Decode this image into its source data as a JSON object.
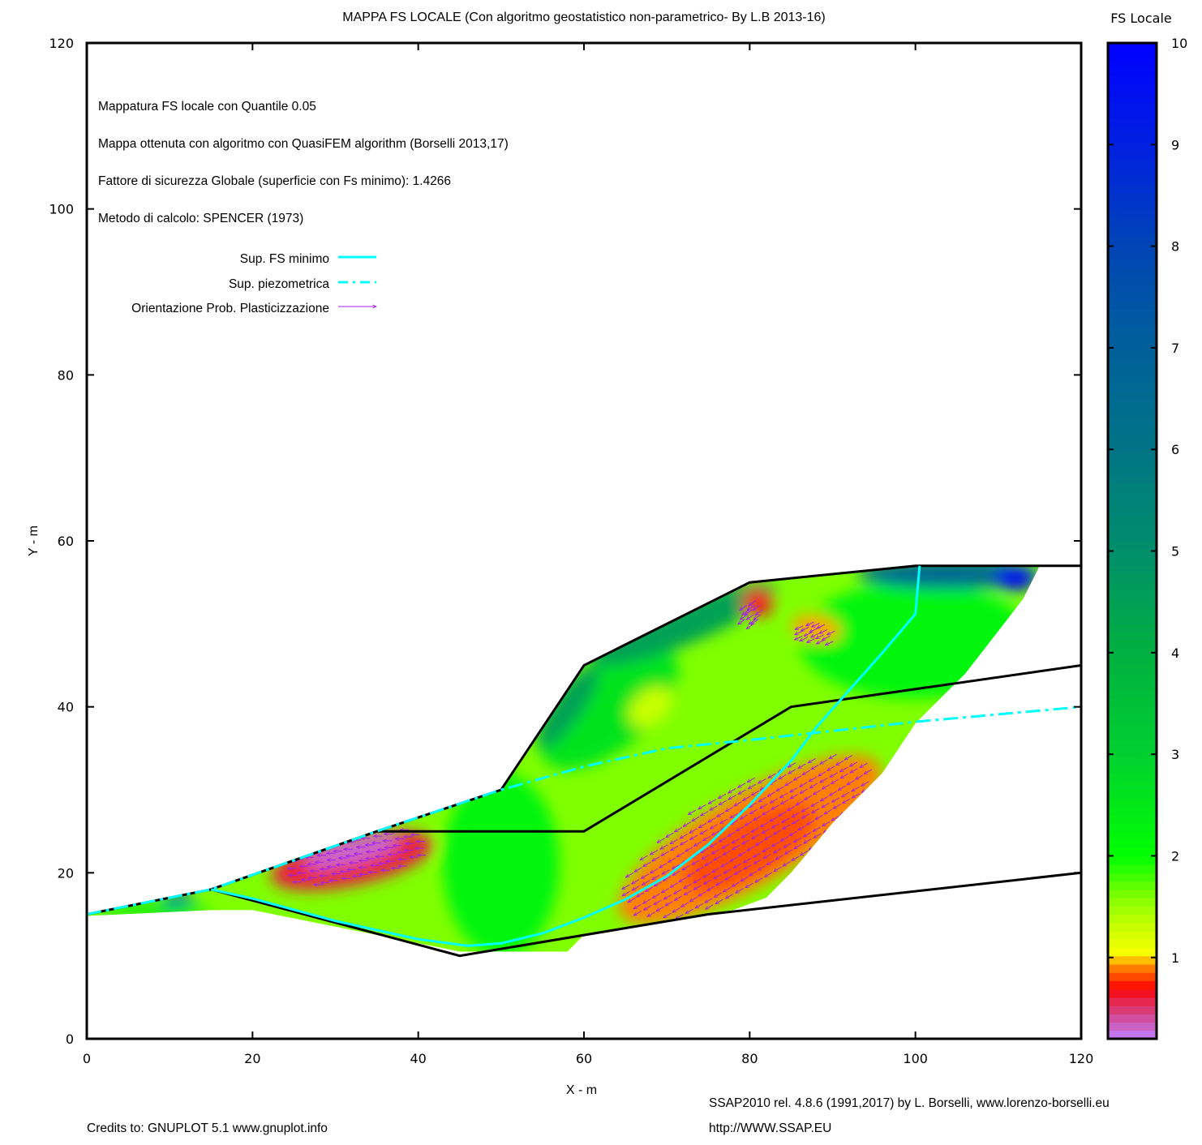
{
  "chart_data": {
    "type": "heatmap",
    "title": "MAPPA FS LOCALE (Con algoritmo geostatistico non-parametrico- By L.B 2013-16)",
    "xlabel": "X  - m",
    "ylabel": "Y  - m",
    "xlim": [
      0,
      120
    ],
    "ylim": [
      0,
      120
    ],
    "xticks": [
      "0",
      "20",
      "40",
      "60",
      "80",
      "100",
      "120"
    ],
    "yticks": [
      "0",
      "20",
      "40",
      "60",
      "80",
      "100",
      "120"
    ],
    "colorbar": {
      "label": "FS Locale",
      "range": [
        0.2,
        10
      ],
      "ticks": [
        "1",
        "2",
        "3",
        "4",
        "5",
        "6",
        "7",
        "8",
        "9",
        "10"
      ],
      "palette": [
        [
          0.2,
          "#c080ff"
        ],
        [
          0.4,
          "#d050a0"
        ],
        [
          0.6,
          "#e82040"
        ],
        [
          0.7,
          "#ff0000"
        ],
        [
          0.8,
          "#ff4000"
        ],
        [
          0.9,
          "#ff8000"
        ],
        [
          0.97,
          "#ffb000"
        ],
        [
          1.0,
          "#ffff00"
        ],
        [
          1.3,
          "#c8ff00"
        ],
        [
          1.6,
          "#80ff00"
        ],
        [
          2.0,
          "#00ff00"
        ],
        [
          3.0,
          "#00d030"
        ],
        [
          4.0,
          "#00b040"
        ],
        [
          5.0,
          "#008f6a"
        ],
        [
          6.0,
          "#007585"
        ],
        [
          7.0,
          "#00609a"
        ],
        [
          8.0,
          "#0045b5"
        ],
        [
          9.0,
          "#0020e0"
        ],
        [
          10.0,
          "#0000ff"
        ]
      ]
    },
    "annotations": [
      "Mappatura FS locale con Quantile  0.05",
      "Mappa ottenuta con algoritmo con QuasiFEM algorithm (Borselli 2013,17)",
      "Fattore di sicurezza Globale (superficie con Fs minimo): 1.4266",
      "Metodo di calcolo: SPENCER (1973)"
    ],
    "legend": {
      "placement": "top-left",
      "entries": [
        {
          "label": "Sup. FS minimo",
          "color": "#00ffff",
          "style": "solid"
        },
        {
          "label": "Sup. piezometrica",
          "color": "#00ffff",
          "style": "dashdot"
        },
        {
          "label": "Orientazione Prob. Plasticizzazione",
          "color": "#a020f0",
          "style": "arrow"
        }
      ]
    },
    "fs_base": 1.6,
    "fs_domain": [
      [
        0,
        15
      ],
      [
        15,
        18
      ],
      [
        35,
        25
      ],
      [
        50,
        30
      ],
      [
        60,
        45
      ],
      [
        80,
        55
      ],
      [
        100,
        57
      ],
      [
        115,
        57
      ],
      [
        113,
        53
      ],
      [
        106,
        44
      ],
      [
        100,
        38
      ],
      [
        96,
        32
      ],
      [
        90,
        26
      ],
      [
        85,
        20
      ],
      [
        82,
        17
      ],
      [
        78,
        15.5
      ],
      [
        60,
        12.5
      ],
      [
        58,
        10.5
      ],
      [
        45,
        10.5
      ],
      [
        40,
        11.5
      ],
      [
        30,
        13.5
      ],
      [
        20,
        15.5
      ],
      [
        15,
        15.5
      ],
      [
        0,
        14.8
      ]
    ],
    "fs_zones": [
      {
        "cx": 50,
        "cy": 21,
        "rx": 7,
        "ry": 11,
        "rot": 0,
        "fs": 2.2
      },
      {
        "cx": 100,
        "cy": 48,
        "rx": 14,
        "ry": 7,
        "rot": 0,
        "fs": 2.2
      },
      {
        "cx": 63,
        "cy": 40,
        "rx": 10,
        "ry": 5,
        "rot": 40,
        "fs": 2.6
      },
      {
        "cx": 72,
        "cy": 50,
        "rx": 12,
        "ry": 2.5,
        "rot": 22,
        "fs": 4.5
      },
      {
        "cx": 58,
        "cy": 40,
        "rx": 6,
        "ry": 1.8,
        "rot": 55,
        "fs": 4.5
      },
      {
        "cx": 104,
        "cy": 56,
        "rx": 11,
        "ry": 1.8,
        "rot": 0,
        "fs": 6.5
      },
      {
        "cx": 112,
        "cy": 55.5,
        "rx": 2.5,
        "ry": 1.5,
        "rot": 0,
        "fs": 9.5
      },
      {
        "cx": 8,
        "cy": 15.5,
        "rx": 7,
        "ry": 0.8,
        "rot": 0,
        "fs": 2.5
      },
      {
        "cx": 11,
        "cy": 16.8,
        "rx": 2,
        "ry": 0.6,
        "rot": 10,
        "fs": 8
      },
      {
        "cx": 68,
        "cy": 40,
        "rx": 3,
        "ry": 2,
        "rot": 40,
        "fs": 1.3
      },
      {
        "cx": 32,
        "cy": 21.5,
        "rx": 10,
        "ry": 3,
        "rot": 12,
        "fs": 0.6
      },
      {
        "cx": 32,
        "cy": 22.5,
        "rx": 6,
        "ry": 1.4,
        "rot": 14,
        "fs": 0.3
      },
      {
        "cx": 80,
        "cy": 24,
        "rx": 18,
        "ry": 5.5,
        "rot": 30,
        "fs": 0.9
      },
      {
        "cx": 80,
        "cy": 23,
        "rx": 9,
        "ry": 3.5,
        "rot": 30,
        "fs": 0.82
      },
      {
        "cx": 81,
        "cy": 52.5,
        "rx": 1.8,
        "ry": 1.6,
        "rot": 0,
        "fs": 0.65
      },
      {
        "cx": 88,
        "cy": 49.5,
        "rx": 3,
        "ry": 1.5,
        "rot": -10,
        "fs": 0.95
      }
    ],
    "arrow_zones": [
      {
        "cx": 33,
        "cy": 22,
        "rx": 9,
        "ry": 3.2,
        "rot": 12,
        "angle": 180,
        "step": 1.2
      },
      {
        "cx": 80,
        "cy": 24.5,
        "rx": 17,
        "ry": 6,
        "rot": 30,
        "angle": 210,
        "step": 1.3
      },
      {
        "cx": 80.5,
        "cy": 51.5,
        "rx": 1.6,
        "ry": 1.5,
        "rot": 0,
        "angle": 215,
        "step": 0.8
      },
      {
        "cx": 88,
        "cy": 49,
        "rx": 2.5,
        "ry": 1.4,
        "rot": -10,
        "angle": 205,
        "step": 0.9
      }
    ],
    "lines": {
      "ground_profile": [
        [
          0,
          15
        ],
        [
          15,
          18
        ],
        [
          35,
          25
        ],
        [
          50,
          30
        ],
        [
          60,
          45
        ],
        [
          80,
          55
        ],
        [
          100,
          57
        ],
        [
          120,
          57
        ]
      ],
      "layer_boundary_1": [
        [
          35,
          25
        ],
        [
          60,
          25
        ],
        [
          85,
          40
        ],
        [
          120,
          45
        ]
      ],
      "layer_boundary_2": [
        [
          15,
          18
        ],
        [
          45,
          10
        ],
        [
          75,
          15
        ],
        [
          120,
          20
        ]
      ],
      "fs_min_surface": [
        [
          15,
          18
        ],
        [
          20,
          16.9
        ],
        [
          30,
          14.2
        ],
        [
          40,
          12
        ],
        [
          46,
          11.2
        ],
        [
          50,
          11.5
        ],
        [
          55,
          12.7
        ],
        [
          60,
          14.6
        ],
        [
          65,
          16.8
        ],
        [
          70,
          19.6
        ],
        [
          75,
          23.4
        ],
        [
          80,
          28.2
        ],
        [
          85,
          33.5
        ],
        [
          88,
          37.5
        ],
        [
          92,
          42
        ],
        [
          96,
          46.5
        ],
        [
          100,
          51.2
        ],
        [
          100.5,
          57
        ]
      ],
      "piezometric_surface": [
        [
          0,
          15
        ],
        [
          15,
          18
        ],
        [
          35,
          25
        ],
        [
          50,
          30
        ],
        [
          60,
          32.8
        ],
        [
          70,
          35
        ],
        [
          80,
          36
        ],
        [
          100,
          38.2
        ],
        [
          120,
          40
        ]
      ]
    }
  },
  "footer": {
    "software": "SSAP2010 rel. 4.8.6 (1991,2017) by L. Borselli, www.lorenzo-borselli.eu",
    "website": "http://WWW.SSAP.EU",
    "credits": "Credits to: GNUPLOT 5.1 www.gnuplot.info"
  }
}
